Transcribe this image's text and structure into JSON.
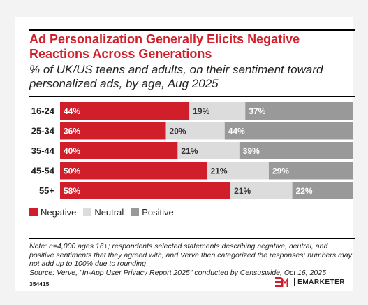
{
  "title": "Ad Personalization Generally Elicits Negative Reactions Across Generations",
  "subtitle": "% of UK/US teens and adults, on their sentiment toward personalized ads, by age, Aug 2025",
  "chart_data": {
    "type": "bar",
    "stacked": true,
    "orientation": "horizontal",
    "categories": [
      "16-24",
      "25-34",
      "35-44",
      "45-54",
      "55+"
    ],
    "series": [
      {
        "name": "Negative",
        "values": [
          44,
          36,
          40,
          50,
          58
        ],
        "color": "#d01f2b"
      },
      {
        "name": "Neutral",
        "values": [
          19,
          20,
          21,
          21,
          21
        ],
        "color": "#dcdcdc"
      },
      {
        "name": "Positive",
        "values": [
          37,
          44,
          39,
          29,
          22
        ],
        "color": "#999999"
      }
    ],
    "xlim": [
      0,
      100
    ],
    "value_suffix": "%",
    "legend": "bottom-left",
    "grid": false
  },
  "legend": {
    "negative": "Negative",
    "neutral": "Neutral",
    "positive": "Positive"
  },
  "colors": {
    "negative": "#d01f2b",
    "neutral": "#dcdcdc",
    "positive": "#999999",
    "accent": "#d01f2b"
  },
  "note": {
    "text": "Note: n=4,000 ages 16+; respondents selected statements describing negative, neutral, and positive sentiments that they agreed with, and Verve then categorized the responses; numbers may not add up to 100% due to rounding",
    "source": "Source: Verve, \"In-App User Privacy Report 2025\" conducted by Censuswide, Oct 16, 2025"
  },
  "footer": {
    "chart_id": "354415",
    "brand": "EMARKETER"
  }
}
